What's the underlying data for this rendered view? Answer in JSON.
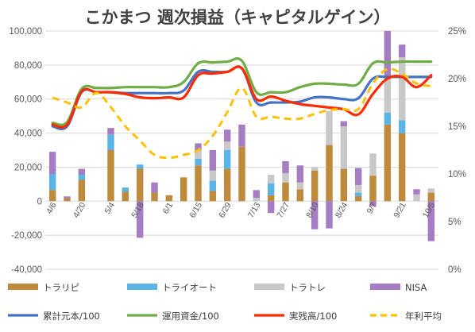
{
  "chart_data": {
    "type": "bar",
    "title": "こかまつ 週次損益（キャピタルゲイン）",
    "xlabel": "",
    "ylabel": "",
    "ylim": [
      -40000,
      100000
    ],
    "y2lim": [
      0,
      25
    ],
    "y_ticks": [
      "100,000",
      "80,000",
      "60,000",
      "40,000",
      "20,000",
      "0",
      "-20,000",
      "-40,000"
    ],
    "y2_ticks": [
      "25%",
      "20%",
      "15%",
      "10%",
      "5%",
      "0%"
    ],
    "x_ticks": [
      "4/6",
      "4/20",
      "5/4",
      "5/18",
      "6/1",
      "6/15",
      "6/29",
      "7/13",
      "7/27",
      "8/10",
      "8/24",
      "9/7",
      "9/21",
      "10/5"
    ],
    "grid": true,
    "legend_position": "bottom",
    "categories": [
      "4/6",
      "4/13",
      "4/20",
      "4/27",
      "5/4",
      "5/11",
      "5/18",
      "5/25",
      "6/1",
      "6/8",
      "6/15",
      "6/22",
      "6/29",
      "7/6",
      "7/13",
      "7/20",
      "7/27",
      "8/3",
      "8/10",
      "8/17",
      "8/24",
      "8/31",
      "9/7",
      "9/14",
      "9/21",
      "9/28",
      "10/5"
    ],
    "series": [
      {
        "name": "トラリピ",
        "type": "bar",
        "color": "#BE8A3C",
        "values": [
          6500,
          1800,
          12500,
          0,
          30000,
          5500,
          19000,
          5000,
          3500,
          14000,
          21000,
          6000,
          19000,
          32000,
          0,
          3500,
          11000,
          7000,
          18000,
          33000,
          19000,
          3000,
          15000,
          45000,
          40000,
          0,
          5000
        ]
      },
      {
        "name": "トライオート",
        "type": "bar",
        "color": "#5BB4E6",
        "values": [
          9500,
          0,
          3000,
          0,
          9000,
          2500,
          2500,
          0,
          0,
          0,
          4000,
          6000,
          11000,
          0,
          0,
          7000,
          0,
          0,
          0,
          0,
          0,
          2000,
          0,
          7000,
          7500,
          0,
          0
        ]
      },
      {
        "name": "トラトレ",
        "type": "bar",
        "color": "#C8C8C8",
        "values": [
          0,
          0,
          0,
          0,
          0,
          0,
          0,
          0,
          0,
          0,
          5000,
          6000,
          5000,
          0,
          2000,
          5000,
          5500,
          4000,
          2000,
          20000,
          25000,
          4500,
          13000,
          20000,
          37000,
          4000,
          2500
        ]
      },
      {
        "name": "NISA",
        "type": "bar",
        "color": "#A57DC3",
        "values": [
          13000,
          1000,
          3500,
          0,
          4000,
          0,
          -21500,
          6000,
          0,
          0,
          4000,
          12000,
          7000,
          13000,
          4500,
          -7000,
          7000,
          10000,
          -16500,
          -16000,
          3000,
          10000,
          -3000,
          28000,
          7500,
          3000,
          -23500
        ]
      },
      {
        "name": "累計元本/100",
        "type": "line",
        "color": "#4472C4",
        "values": [
          44000,
          44000,
          64000,
          64000,
          64000,
          63500,
          63500,
          63500,
          63500,
          65000,
          76000,
          76000,
          76000,
          78000,
          58000,
          58000,
          58000,
          58500,
          61000,
          61000,
          60000,
          60500,
          72000,
          73000,
          73000,
          73000,
          73000
        ]
      },
      {
        "name": "運用資金/100",
        "type": "line",
        "color": "#70AD47",
        "values": [
          46000,
          46500,
          66000,
          66500,
          66500,
          67000,
          67000,
          67000,
          67000,
          70000,
          81000,
          81500,
          82000,
          82500,
          64000,
          64000,
          64000,
          67000,
          69000,
          69000,
          68500,
          69000,
          81000,
          81500,
          82000,
          82000,
          82000
        ]
      },
      {
        "name": "実残高/100",
        "type": "line",
        "color": "#FF2A00",
        "values": [
          45000,
          45000,
          64500,
          64000,
          64000,
          63000,
          61000,
          60500,
          61000,
          61000,
          74000,
          75000,
          76000,
          78000,
          60000,
          61500,
          59000,
          57000,
          56000,
          55000,
          54000,
          51000,
          63000,
          72000,
          73000,
          67000,
          74000
        ]
      },
      {
        "name": "年利平均",
        "type": "line",
        "axis": "y2",
        "color": "#FFC000",
        "values": [
          18,
          17.5,
          17,
          18.5,
          17,
          15,
          13.5,
          12,
          11.7,
          12,
          12.5,
          14,
          16.5,
          19,
          16,
          16,
          15.8,
          15.8,
          16.3,
          16.7,
          16.8,
          16.8,
          19.5,
          21,
          20.5,
          19.5,
          19.2
        ]
      }
    ]
  }
}
